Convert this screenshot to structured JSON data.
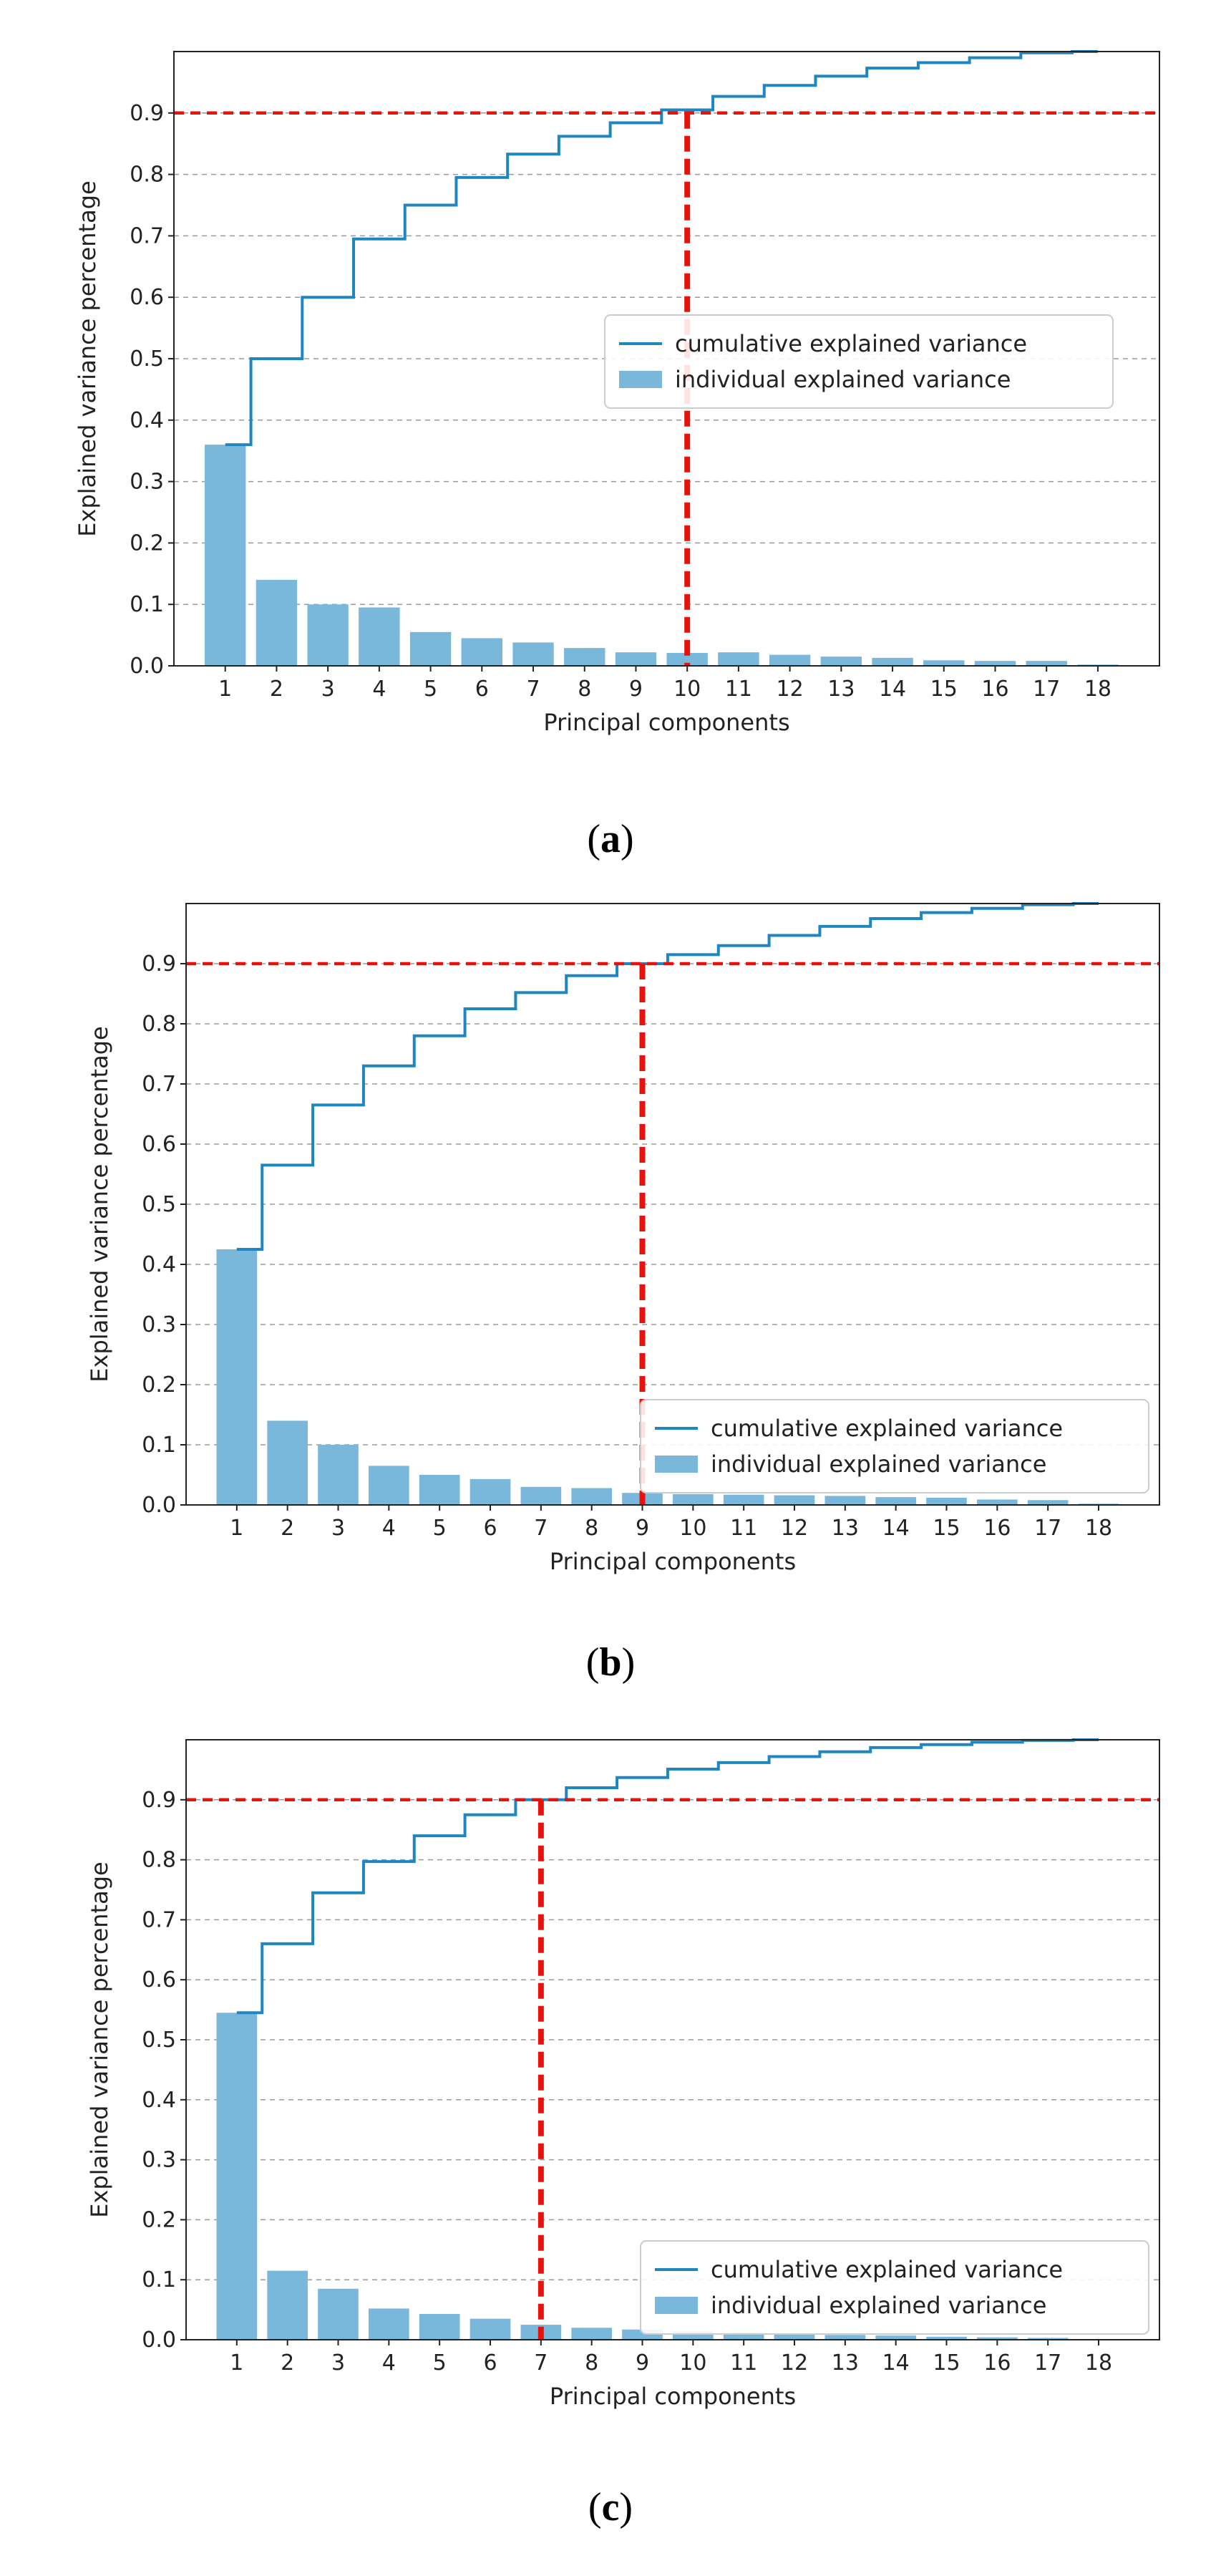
{
  "chart_data": [
    {
      "type": "bar",
      "caption_letter": "a",
      "xlabel": "Principal components",
      "ylabel": "Explained variance percentage",
      "categories": [
        "1",
        "2",
        "3",
        "4",
        "5",
        "6",
        "7",
        "8",
        "9",
        "10",
        "11",
        "12",
        "13",
        "14",
        "15",
        "16",
        "17",
        "18"
      ],
      "ylim": [
        0,
        1.0
      ],
      "yticks": [
        "0.0",
        "0.1",
        "0.2",
        "0.3",
        "0.4",
        "0.5",
        "0.6",
        "0.7",
        "0.8",
        "0.9"
      ],
      "threshold": 0.9,
      "selected_component": 10,
      "legend_position": "center-right",
      "series": [
        {
          "name": "cumulative explained variance",
          "type": "step",
          "values": [
            0.36,
            0.5,
            0.6,
            0.695,
            0.75,
            0.795,
            0.833,
            0.862,
            0.884,
            0.905,
            0.927,
            0.945,
            0.96,
            0.973,
            0.982,
            0.99,
            0.998,
            1.0
          ]
        },
        {
          "name": "individual explained variance",
          "type": "bar",
          "values": [
            0.36,
            0.14,
            0.1,
            0.095,
            0.055,
            0.045,
            0.038,
            0.029,
            0.022,
            0.021,
            0.022,
            0.018,
            0.015,
            0.013,
            0.009,
            0.008,
            0.008,
            0.002
          ]
        }
      ]
    },
    {
      "type": "bar",
      "caption_letter": "b",
      "xlabel": "Principal components",
      "ylabel": "Explained variance percentage",
      "categories": [
        "1",
        "2",
        "3",
        "4",
        "5",
        "6",
        "7",
        "8",
        "9",
        "10",
        "11",
        "12",
        "13",
        "14",
        "15",
        "16",
        "17",
        "18"
      ],
      "ylim": [
        0,
        1.0
      ],
      "yticks": [
        "0.0",
        "0.1",
        "0.2",
        "0.3",
        "0.4",
        "0.5",
        "0.6",
        "0.7",
        "0.8",
        "0.9"
      ],
      "threshold": 0.9,
      "selected_component": 9,
      "legend_position": "lower-right",
      "series": [
        {
          "name": "cumulative explained variance",
          "type": "step",
          "values": [
            0.425,
            0.565,
            0.665,
            0.73,
            0.78,
            0.825,
            0.852,
            0.88,
            0.9,
            0.915,
            0.93,
            0.947,
            0.962,
            0.975,
            0.985,
            0.992,
            0.998,
            1.0
          ]
        },
        {
          "name": "individual explained variance",
          "type": "bar",
          "values": [
            0.425,
            0.14,
            0.1,
            0.065,
            0.05,
            0.043,
            0.03,
            0.028,
            0.02,
            0.018,
            0.017,
            0.016,
            0.015,
            0.013,
            0.012,
            0.009,
            0.008,
            0.002
          ]
        }
      ]
    },
    {
      "type": "bar",
      "caption_letter": "c",
      "xlabel": "Principal components",
      "ylabel": "Explained variance percentage",
      "categories": [
        "1",
        "2",
        "3",
        "4",
        "5",
        "6",
        "7",
        "8",
        "9",
        "10",
        "11",
        "12",
        "13",
        "14",
        "15",
        "16",
        "17",
        "18"
      ],
      "ylim": [
        0,
        1.0
      ],
      "yticks": [
        "0.0",
        "0.1",
        "0.2",
        "0.3",
        "0.4",
        "0.5",
        "0.6",
        "0.7",
        "0.8",
        "0.9"
      ],
      "threshold": 0.9,
      "selected_component": 7,
      "legend_position": "lower-right",
      "series": [
        {
          "name": "cumulative explained variance",
          "type": "step",
          "values": [
            0.545,
            0.66,
            0.745,
            0.797,
            0.84,
            0.875,
            0.9,
            0.92,
            0.937,
            0.951,
            0.962,
            0.972,
            0.98,
            0.987,
            0.992,
            0.996,
            0.999,
            1.0
          ]
        },
        {
          "name": "individual explained variance",
          "type": "bar",
          "values": [
            0.545,
            0.115,
            0.085,
            0.052,
            0.043,
            0.035,
            0.025,
            0.02,
            0.017,
            0.014,
            0.012,
            0.01,
            0.008,
            0.007,
            0.005,
            0.004,
            0.003,
            0.001
          ]
        }
      ]
    }
  ],
  "colors": {
    "bar": "#7ab8db",
    "step": "#1f86c1",
    "threshold": "#e8120c",
    "grid": "#9a9a9a",
    "axis": "#222222"
  }
}
